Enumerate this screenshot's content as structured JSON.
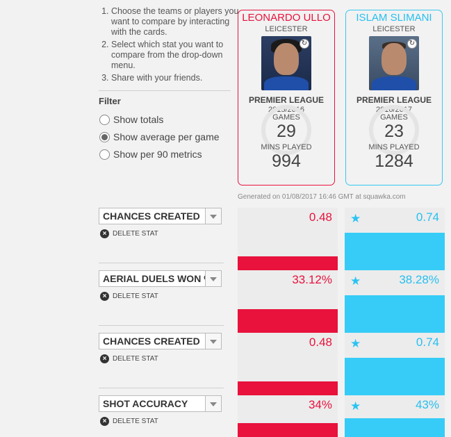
{
  "instructions": [
    "Choose the teams or players you want to compare by interacting with the cards.",
    "Select which stat you want to compare from the drop-down menu.",
    "Share with your friends."
  ],
  "filter": {
    "title": "Filter",
    "options": [
      {
        "label": "Show totals",
        "checked": false
      },
      {
        "label": "Show average per game",
        "checked": true
      },
      {
        "label": "Show per 90 metrics",
        "checked": false
      }
    ]
  },
  "players": [
    {
      "name": "LEONARDO ULLO",
      "club": "LEICESTER",
      "league": "PREMIER LEAGUE",
      "season": "2015/2016",
      "games_label": "GAMES",
      "games": "29",
      "mins_label": "MINS PLAYED",
      "mins": "994",
      "color": "#e8123c"
    },
    {
      "name": "ISLAM SLIMANI",
      "club": "LEICESTER",
      "league": "PREMIER LEAGUE",
      "season": "2016/2017",
      "games_label": "GAMES",
      "games": "23",
      "mins_label": "MINS PLAYED",
      "mins": "1284",
      "color": "#35c8f3"
    }
  ],
  "generated": "Generated on 01/08/2017 16:46 GMT at squawka.com",
  "delete_label": "DELETE STAT",
  "stats": [
    {
      "name": "CHANCES CREATED",
      "left_value": "0.48",
      "right_value": "0.74",
      "left_level": 0.36,
      "right_level": 0.96
    },
    {
      "name": "AERIAL DUELS WON %",
      "left_value": "33.12%",
      "right_value": "38.28%",
      "left_level": 0.6,
      "right_level": 0.96
    },
    {
      "name": "CHANCES CREATED",
      "left_value": "0.48",
      "right_value": "0.74",
      "left_level": 0.36,
      "right_level": 0.96
    },
    {
      "name": "SHOT ACCURACY",
      "left_value": "34%",
      "right_value": "43%",
      "left_level": 0.7,
      "right_level": 0.96
    }
  ],
  "icons": {
    "star": "star-icon",
    "delete": "close-circle-icon",
    "dropdown": "chevron-down-icon",
    "badge": "rotate-icon"
  }
}
